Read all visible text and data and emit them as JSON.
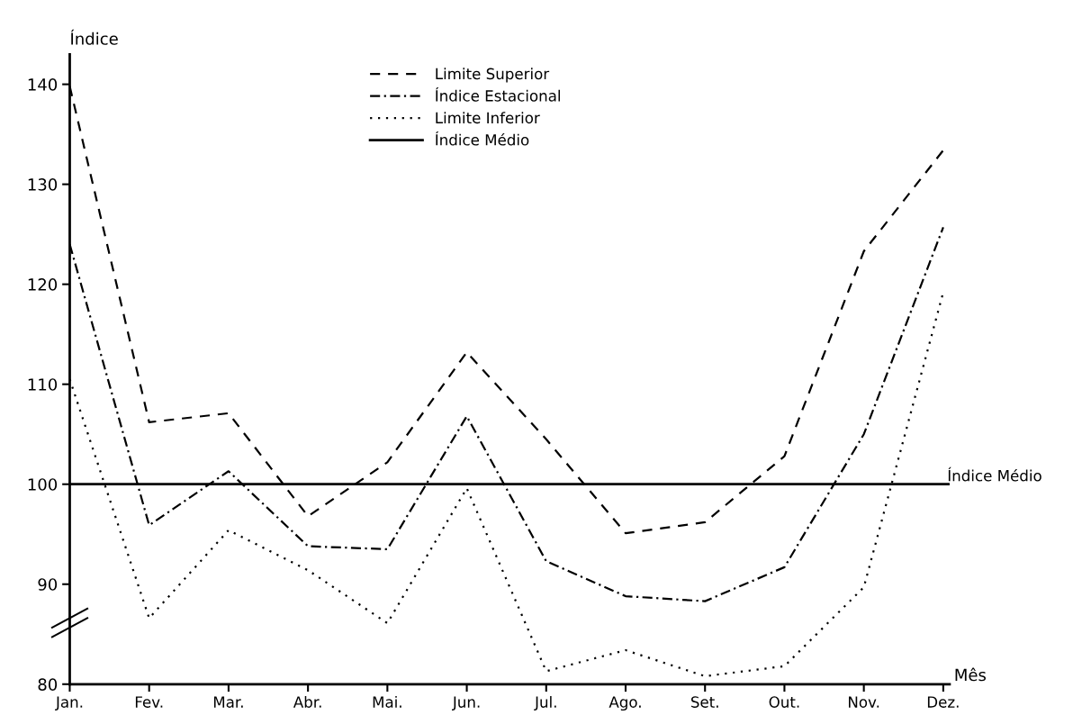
{
  "chart_data": {
    "type": "line",
    "xlabel": "Mês",
    "ylabel": "Índice",
    "categories": [
      "Jan.",
      "Fev.",
      "Mar.",
      "Abr.",
      "Mai.",
      "Jun.",
      "Jul.",
      "Ago.",
      "Set.",
      "Out.",
      "Nov.",
      "Dez."
    ],
    "series": [
      {
        "name": "Limite Superior",
        "color": "#000000",
        "line_style": "dashed",
        "values": [
          139.8,
          106.2,
          107.1,
          96.8,
          102.2,
          113.2,
          104.5,
          95.1,
          96.2,
          102.8,
          123.3,
          133.4
        ]
      },
      {
        "name": "Índice Estacional",
        "color": "#000000",
        "line_style": "dashdot",
        "values": [
          124,
          95.9,
          101.3,
          93.8,
          93.5,
          106.8,
          92.3,
          88.8,
          88.3,
          91.7,
          105,
          125.7
        ]
      },
      {
        "name": "Limite Inferior",
        "color": "#000000",
        "line_style": "dotted",
        "values": [
          110.5,
          86.6,
          95.4,
          91.4,
          86.1,
          99.6,
          81.3,
          83.4,
          80.8,
          81.8,
          89.7,
          119.2
        ]
      }
    ],
    "ref_lines": [
      {
        "axis": "y",
        "value": 100,
        "label": "Índice Médio",
        "color": "#000000",
        "line_style": "solid"
      }
    ],
    "ylim": [
      80,
      143
    ],
    "yticks": [
      80,
      90,
      100,
      110,
      120,
      130,
      140
    ],
    "grid": false,
    "legend": "top",
    "marker": "none"
  }
}
